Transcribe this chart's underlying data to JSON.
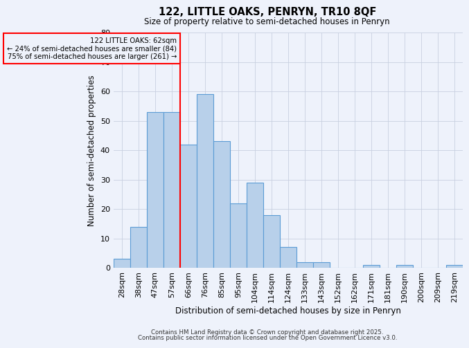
{
  "title": "122, LITTLE OAKS, PENRYN, TR10 8QF",
  "subtitle": "Size of property relative to semi-detached houses in Penryn",
  "xlabel": "Distribution of semi-detached houses by size in Penryn",
  "ylabel": "Number of semi-detached properties",
  "categories": [
    "28sqm",
    "38sqm",
    "47sqm",
    "57sqm",
    "66sqm",
    "76sqm",
    "85sqm",
    "95sqm",
    "104sqm",
    "114sqm",
    "124sqm",
    "133sqm",
    "143sqm",
    "152sqm",
    "162sqm",
    "171sqm",
    "181sqm",
    "190sqm",
    "200sqm",
    "209sqm",
    "219sqm"
  ],
  "values": [
    3,
    14,
    53,
    53,
    42,
    59,
    43,
    22,
    29,
    18,
    7,
    2,
    2,
    0,
    0,
    1,
    0,
    1,
    0,
    0,
    1
  ],
  "bar_color": "#b8d0ea",
  "bar_edge_color": "#5b9bd5",
  "background_color": "#eef2fb",
  "grid_color": "#c8d0e0",
  "ylim": [
    0,
    80
  ],
  "yticks": [
    0,
    10,
    20,
    30,
    40,
    50,
    60,
    70,
    80
  ],
  "annotation_line1": "122 LITTLE OAKS: 62sqm",
  "annotation_line2": "← 24% of semi-detached houses are smaller (84)",
  "annotation_line3": "75% of semi-detached houses are larger (261) →",
  "vline_x": 3.5,
  "footer_line1": "Contains HM Land Registry data © Crown copyright and database right 2025.",
  "footer_line2": "Contains public sector information licensed under the Open Government Licence v3.0."
}
